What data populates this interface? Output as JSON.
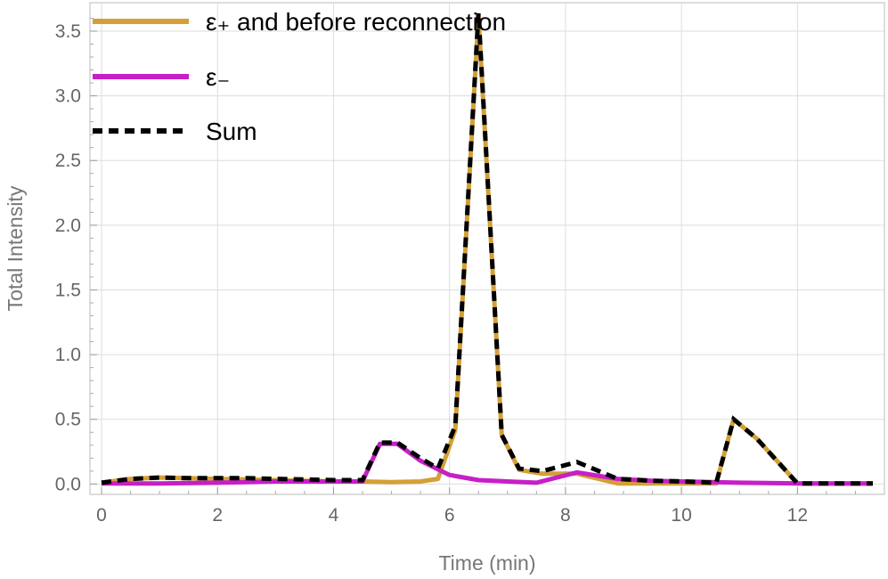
{
  "chart_data": {
    "type": "line",
    "xlabel": "Time (min)",
    "ylabel": "Total Intensity",
    "xlim": [
      -0.2,
      13.5
    ],
    "ylim": [
      -0.08,
      3.72
    ],
    "x_ticks": [
      "0",
      "2",
      "4",
      "6",
      "8",
      "10",
      "12"
    ],
    "y_ticks": [
      "0.0",
      "0.5",
      "1.0",
      "1.5",
      "2.0",
      "2.5",
      "3.0",
      "3.5"
    ],
    "grid": true,
    "legend_position": "top-left",
    "series": [
      {
        "name": "ε₊ and before reconnection",
        "color": "#D4A035",
        "style": "solid",
        "points": [
          [
            0,
            0.01
          ],
          [
            0.5,
            0.04
          ],
          [
            1,
            0.05
          ],
          [
            1.5,
            0.045
          ],
          [
            2,
            0.04
          ],
          [
            2.5,
            0.035
          ],
          [
            3,
            0.03
          ],
          [
            3.5,
            0.025
          ],
          [
            4,
            0.02
          ],
          [
            4.5,
            0.02
          ],
          [
            5,
            0.015
          ],
          [
            5.5,
            0.02
          ],
          [
            5.8,
            0.04
          ],
          [
            6.1,
            0.42
          ],
          [
            6.5,
            3.62
          ],
          [
            6.9,
            0.38
          ],
          [
            7.2,
            0.11
          ],
          [
            7.6,
            0.08
          ],
          [
            8.2,
            0.08
          ],
          [
            8.9,
            0.005
          ],
          [
            9.5,
            0.005
          ],
          [
            10.6,
            0.005
          ],
          [
            10.9,
            0.5
          ],
          [
            11.3,
            0.35
          ],
          [
            12,
            0.005
          ],
          [
            13.3,
            0.005
          ]
        ]
      },
      {
        "name": "ε₋",
        "color": "#C71FC7",
        "style": "solid",
        "points": [
          [
            0,
            0.005
          ],
          [
            1,
            0.005
          ],
          [
            2,
            0.01
          ],
          [
            3,
            0.02
          ],
          [
            4,
            0.02
          ],
          [
            4.5,
            0.02
          ],
          [
            4.8,
            0.31
          ],
          [
            5.1,
            0.31
          ],
          [
            5.5,
            0.18
          ],
          [
            6,
            0.07
          ],
          [
            6.5,
            0.03
          ],
          [
            7,
            0.02
          ],
          [
            7.5,
            0.01
          ],
          [
            8.2,
            0.09
          ],
          [
            8.9,
            0.04
          ],
          [
            9.5,
            0.025
          ],
          [
            10,
            0.02
          ],
          [
            11,
            0.01
          ],
          [
            12,
            0.005
          ],
          [
            13.3,
            0.005
          ]
        ]
      },
      {
        "name": "Sum",
        "color": "#000000",
        "style": "dashed",
        "points": [
          [
            0,
            0.01
          ],
          [
            0.5,
            0.04
          ],
          [
            1,
            0.05
          ],
          [
            1.5,
            0.045
          ],
          [
            2,
            0.045
          ],
          [
            2.5,
            0.045
          ],
          [
            3,
            0.04
          ],
          [
            3.5,
            0.035
          ],
          [
            4,
            0.03
          ],
          [
            4.5,
            0.03
          ],
          [
            4.8,
            0.32
          ],
          [
            5.1,
            0.32
          ],
          [
            5.5,
            0.2
          ],
          [
            5.8,
            0.12
          ],
          [
            6.1,
            0.45
          ],
          [
            6.5,
            3.64
          ],
          [
            6.9,
            0.38
          ],
          [
            7.2,
            0.12
          ],
          [
            7.6,
            0.1
          ],
          [
            8.2,
            0.17
          ],
          [
            8.9,
            0.04
          ],
          [
            9.5,
            0.025
          ],
          [
            10,
            0.02
          ],
          [
            10.6,
            0.01
          ],
          [
            10.9,
            0.5
          ],
          [
            11.3,
            0.35
          ],
          [
            12,
            0.005
          ],
          [
            13.3,
            0.005
          ]
        ]
      }
    ]
  }
}
